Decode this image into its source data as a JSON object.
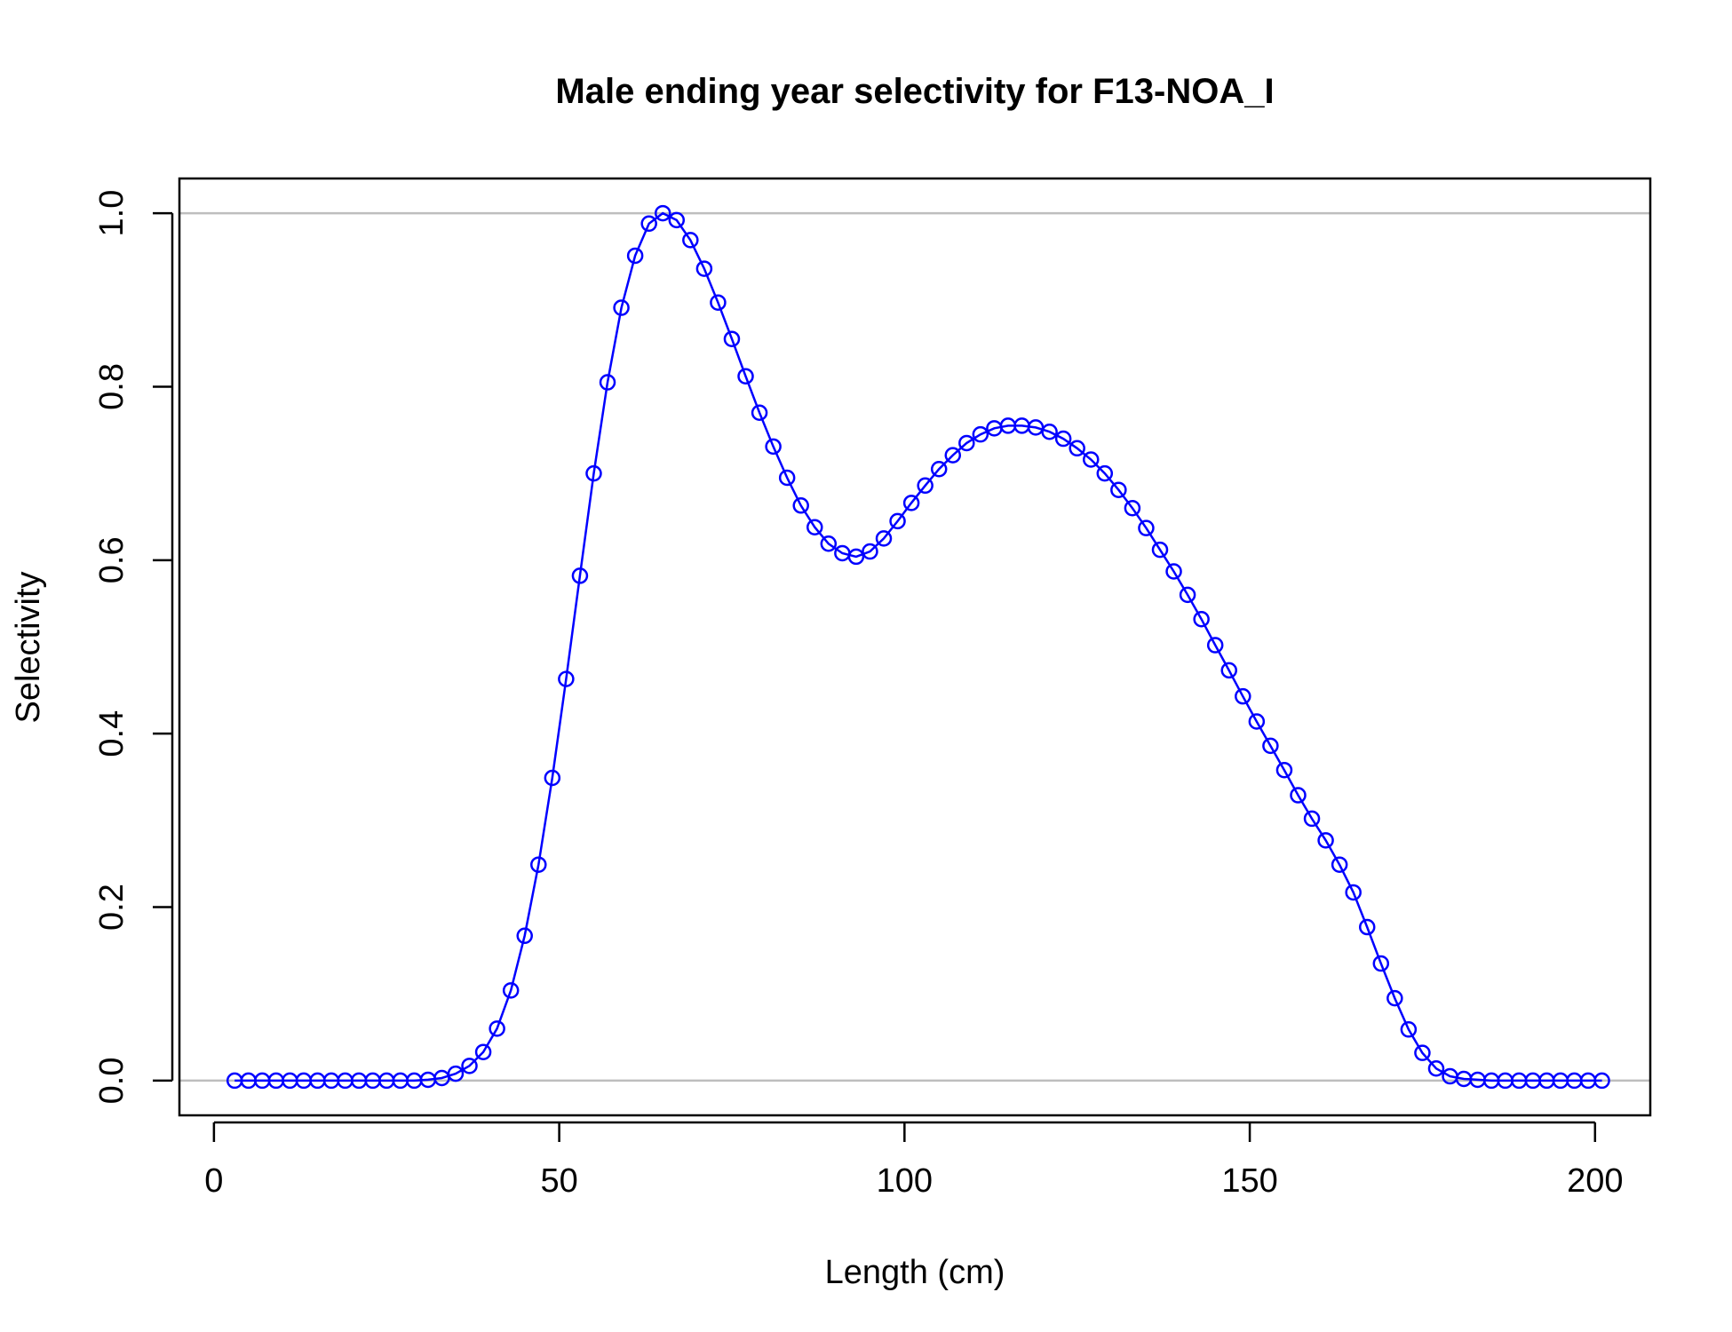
{
  "chart_data": {
    "type": "line",
    "title": "Male ending year selectivity for F13-NOA_I",
    "xlabel": "Length (cm)",
    "ylabel": "Selectivity",
    "xlim": [
      -5,
      208
    ],
    "ylim": [
      -0.04,
      1.04
    ],
    "x_ticks": [
      0,
      50,
      100,
      150,
      200
    ],
    "x_tick_labels": [
      "0",
      "50",
      "100",
      "150",
      "200"
    ],
    "y_ticks": [
      0.0,
      0.2,
      0.4,
      0.6,
      0.8,
      1.0
    ],
    "y_tick_labels": [
      "0.0",
      "0.2",
      "0.4",
      "0.6",
      "0.8",
      "1.0"
    ],
    "reference_lines": [
      0,
      1
    ],
    "grid": false,
    "series": [
      {
        "color": "#0000ff",
        "marker": "open-circle",
        "x": [
          3,
          5,
          7,
          9,
          11,
          13,
          15,
          17,
          19,
          21,
          23,
          25,
          27,
          29,
          31,
          33,
          35,
          37,
          39,
          41,
          43,
          45,
          47,
          49,
          51,
          53,
          55,
          57,
          59,
          61,
          63,
          65,
          67,
          69,
          71,
          73,
          75,
          77,
          79,
          81,
          83,
          85,
          87,
          89,
          91,
          93,
          95,
          97,
          99,
          101,
          103,
          105,
          107,
          109,
          111,
          113,
          115,
          117,
          119,
          121,
          123,
          125,
          127,
          129,
          131,
          133,
          135,
          137,
          139,
          141,
          143,
          145,
          147,
          149,
          151,
          153,
          155,
          157,
          159,
          161,
          163,
          165,
          167,
          169,
          171,
          173,
          175,
          177,
          179,
          181,
          183,
          185,
          187,
          189,
          191,
          193,
          195,
          197,
          199,
          201
        ],
        "y": [
          0,
          0,
          0,
          0,
          0,
          0,
          0,
          0,
          0,
          0,
          0,
          0,
          0,
          0,
          0.001,
          0.003,
          0.008,
          0.017,
          0.033,
          0.06,
          0.104,
          0.167,
          0.249,
          0.349,
          0.463,
          0.582,
          0.7,
          0.805,
          0.891,
          0.951,
          0.988,
          1.0,
          0.992,
          0.969,
          0.936,
          0.897,
          0.855,
          0.812,
          0.77,
          0.731,
          0.695,
          0.663,
          0.638,
          0.619,
          0.608,
          0.604,
          0.61,
          0.625,
          0.645,
          0.666,
          0.686,
          0.705,
          0.721,
          0.735,
          0.745,
          0.752,
          0.755,
          0.755,
          0.753,
          0.748,
          0.74,
          0.729,
          0.716,
          0.7,
          0.681,
          0.66,
          0.637,
          0.612,
          0.587,
          0.56,
          0.532,
          0.502,
          0.473,
          0.443,
          0.414,
          0.386,
          0.358,
          0.329,
          0.302,
          0.277,
          0.249,
          0.217,
          0.177,
          0.135,
          0.095,
          0.059,
          0.032,
          0.014,
          0.005,
          0.002,
          0.001,
          0,
          0,
          0,
          0,
          0,
          0,
          0,
          0,
          0
        ]
      }
    ]
  }
}
